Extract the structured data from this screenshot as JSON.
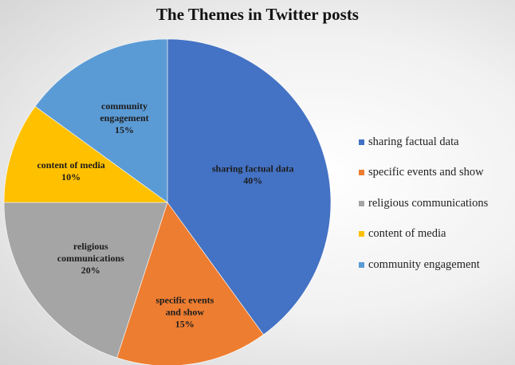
{
  "chart_data": {
    "type": "pie",
    "title": "The Themes in Twitter posts",
    "categories": [
      "sharing factual data",
      "specific events and show",
      "religious communications",
      "content of media",
      "community engagement"
    ],
    "values": [
      40,
      15,
      20,
      10,
      15
    ],
    "unit": "%",
    "colors": [
      "#4472C4",
      "#ED7D31",
      "#A5A5A5",
      "#FFC000",
      "#5B9BD5"
    ],
    "slice_labels": [
      [
        "sharing factual data",
        "40%"
      ],
      [
        "specific events",
        "and show",
        "15%"
      ],
      [
        "religious",
        "communications",
        "20%"
      ],
      [
        "content of media",
        "10%"
      ],
      [
        "community",
        "engagement",
        "15%"
      ]
    ],
    "legend_position": "right"
  }
}
